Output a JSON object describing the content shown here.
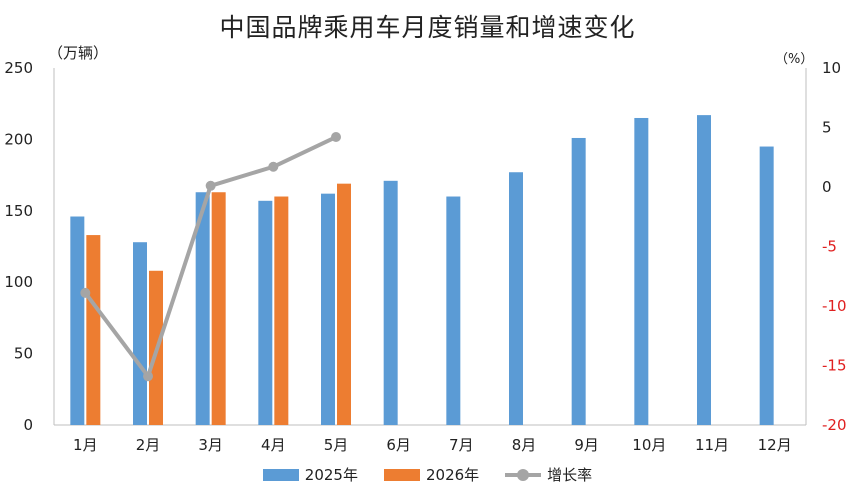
{
  "chart_data": {
    "type": "bar",
    "title": "中国品牌乘用车月度销量和增速变化",
    "left_axis_unit": "（万辆）",
    "right_axis_unit": "（%）",
    "categories": [
      "1月",
      "2月",
      "3月",
      "4月",
      "5月",
      "6月",
      "7月",
      "8月",
      "9月",
      "10月",
      "11月",
      "12月"
    ],
    "series": [
      {
        "name": "2025年",
        "type": "bar",
        "axis": "left",
        "color": "#5b9bd5",
        "values": [
          146,
          128,
          163,
          157,
          162,
          171,
          160,
          177,
          201,
          215,
          217,
          195
        ]
      },
      {
        "name": "2026年",
        "type": "bar",
        "axis": "left",
        "color": "#ed7d31",
        "values": [
          133,
          108,
          163,
          160,
          169,
          null,
          null,
          null,
          null,
          null,
          null,
          null
        ]
      },
      {
        "name": "增长率",
        "type": "line",
        "axis": "right",
        "color": "#a5a5a5",
        "values": [
          -8.9,
          -15.9,
          0.1,
          1.7,
          4.2,
          null,
          null,
          null,
          null,
          null,
          null,
          null
        ]
      }
    ],
    "left_axis": {
      "min": 0,
      "max": 250,
      "step": 50,
      "tick_labels": [
        "0",
        "50",
        "100",
        "150",
        "200",
        "250"
      ]
    },
    "right_axis": {
      "min": -20,
      "max": 10,
      "step": 5,
      "tick_labels": [
        "-20",
        "-15",
        "-10",
        "-5",
        "0",
        "5",
        "10"
      ],
      "negative_label_color": "#e02020"
    },
    "grid": false,
    "legend_position": "bottom"
  }
}
